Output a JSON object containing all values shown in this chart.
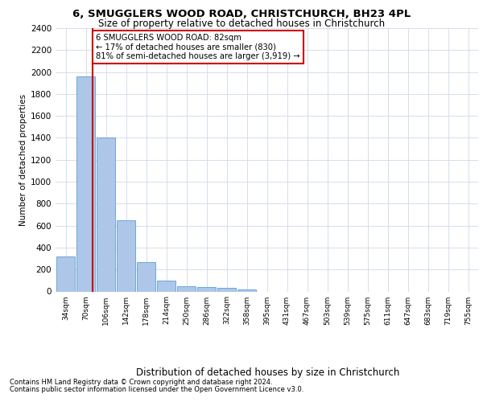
{
  "title_line1": "6, SMUGGLERS WOOD ROAD, CHRISTCHURCH, BH23 4PL",
  "title_line2": "Size of property relative to detached houses in Christchurch",
  "xlabel": "Distribution of detached houses by size in Christchurch",
  "ylabel": "Number of detached properties",
  "footnote1": "Contains HM Land Registry data © Crown copyright and database right 2024.",
  "footnote2": "Contains public sector information licensed under the Open Government Licence v3.0.",
  "bar_labels": [
    "34sqm",
    "70sqm",
    "106sqm",
    "142sqm",
    "178sqm",
    "214sqm",
    "250sqm",
    "286sqm",
    "322sqm",
    "358sqm",
    "395sqm",
    "431sqm",
    "467sqm",
    "503sqm",
    "539sqm",
    "575sqm",
    "611sqm",
    "647sqm",
    "683sqm",
    "719sqm",
    "755sqm"
  ],
  "bar_values": [
    320,
    1960,
    1400,
    650,
    270,
    100,
    45,
    38,
    32,
    20,
    0,
    0,
    0,
    0,
    0,
    0,
    0,
    0,
    0,
    0,
    0
  ],
  "bar_color": "#aec6e8",
  "bar_edge_color": "#5a9fd4",
  "ylim": [
    0,
    2400
  ],
  "yticks": [
    0,
    200,
    400,
    600,
    800,
    1000,
    1200,
    1400,
    1600,
    1800,
    2000,
    2200,
    2400
  ],
  "property_line_x": 1.35,
  "annotation_text_line1": "6 SMUGGLERS WOOD ROAD: 82sqm",
  "annotation_text_line2": "← 17% of detached houses are smaller (830)",
  "annotation_text_line3": "81% of semi-detached houses are larger (3,919) →",
  "annotation_box_color": "#ffffff",
  "annotation_box_edgecolor": "#cc0000",
  "red_line_color": "#cc0000",
  "background_color": "#ffffff",
  "grid_color": "#d0d8e8",
  "title1_fontsize": 9.5,
  "title2_fontsize": 8.5,
  "ylabel_fontsize": 7.5,
  "xlabel_fontsize": 8.5,
  "ytick_fontsize": 7.5,
  "xtick_fontsize": 6.5,
  "annot_fontsize": 7.2,
  "footnote_fontsize": 6.0
}
